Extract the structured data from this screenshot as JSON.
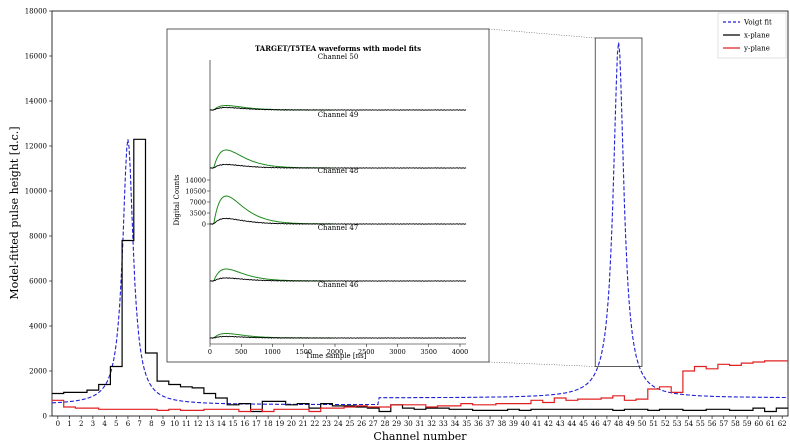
{
  "chart_data": [
    {
      "type": "line",
      "xlabel": "Channel number",
      "ylabel": "Model-fitted pulse height [d.c.]",
      "xlim": [
        0,
        63
      ],
      "ylim": [
        0,
        18000
      ],
      "x_ticks": [
        0,
        1,
        2,
        3,
        4,
        5,
        6,
        7,
        8,
        9,
        10,
        11,
        12,
        13,
        14,
        15,
        16,
        17,
        18,
        19,
        20,
        21,
        22,
        23,
        24,
        25,
        26,
        27,
        28,
        29,
        30,
        31,
        32,
        33,
        34,
        35,
        36,
        37,
        38,
        39,
        40,
        41,
        42,
        43,
        44,
        45,
        46,
        47,
        48,
        49,
        50,
        51,
        52,
        53,
        54,
        55,
        56,
        57,
        58,
        59,
        60,
        61,
        62
      ],
      "y_ticks": [
        0,
        2000,
        4000,
        6000,
        8000,
        10000,
        12000,
        14000,
        16000,
        18000
      ],
      "grid": false,
      "legend_position": "top-right",
      "series": [
        {
          "name": "Voigt fit",
          "style": "dashed",
          "color": "#1f1fd6",
          "segments": [
            {
              "center": 6.5,
              "amplitude": 11800,
              "width": 0.55,
              "baseline": 500
            },
            {
              "center": 48.5,
              "amplitude": 15800,
              "width": 0.55,
              "baseline": 800
            }
          ]
        },
        {
          "name": "x-plane",
          "style": "steps",
          "color": "#000000",
          "values": [
            1000,
            1050,
            1050,
            1150,
            1400,
            2200,
            7800,
            12300,
            2800,
            1550,
            1400,
            1300,
            1250,
            1000,
            800,
            500,
            550,
            200,
            650,
            650,
            500,
            550,
            350,
            550,
            450,
            450,
            400,
            350,
            200,
            500,
            350,
            300,
            350,
            350,
            300,
            300,
            250,
            250,
            250,
            300,
            250,
            300,
            300,
            300,
            300,
            300,
            300,
            300,
            250,
            300,
            300,
            250,
            300,
            300,
            250,
            250,
            300,
            300,
            250,
            250,
            350,
            200,
            350
          ]
        },
        {
          "name": "y-plane",
          "style": "steps",
          "color": "#e02020",
          "values": [
            700,
            400,
            350,
            350,
            300,
            300,
            300,
            300,
            300,
            250,
            300,
            250,
            250,
            300,
            300,
            300,
            200,
            300,
            200,
            300,
            300,
            300,
            200,
            350,
            350,
            400,
            450,
            400,
            400,
            500,
            500,
            500,
            400,
            450,
            450,
            550,
            500,
            500,
            550,
            550,
            550,
            700,
            600,
            800,
            700,
            750,
            750,
            800,
            900,
            700,
            750,
            1200,
            1300,
            1050,
            2000,
            2200,
            2100,
            2300,
            2250,
            2350,
            2400,
            2450,
            2450
          ]
        }
      ]
    },
    {
      "type": "line",
      "title": "TARGET/T5TEA waveforms with model fits",
      "xlabel": "Time sample [ns]",
      "ylabel": "Digital Counts",
      "xlim": [
        0,
        4096
      ],
      "x_ticks": [
        0,
        500,
        1000,
        1500,
        2000,
        2500,
        3000,
        3500,
        4000
      ],
      "y_ticks": [
        "0",
        "3500",
        "7000",
        "10500",
        "14000"
      ],
      "grid": false,
      "panels": [
        {
          "label": "Channel 50",
          "waveform_peak": 0.25,
          "fit_peak": 0.45
        },
        {
          "label": "Channel 49",
          "waveform_peak": 0.35,
          "fit_peak": 1.8
        },
        {
          "label": "Channel 48",
          "waveform_peak": 0.55,
          "fit_peak": 2.8
        },
        {
          "label": "Channel 47",
          "waveform_peak": 0.3,
          "fit_peak": 1.2
        },
        {
          "label": "Channel 46",
          "waveform_peak": 0.15,
          "fit_peak": 0.45
        }
      ],
      "waveform_color": "#000000",
      "fit_color": "#1e8a1e"
    }
  ]
}
